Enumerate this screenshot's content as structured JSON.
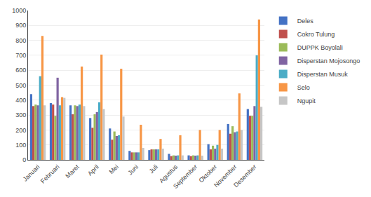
{
  "chart_data": {
    "type": "bar",
    "categories": [
      "Januari",
      "Februari",
      "Maret",
      "April",
      "Mei",
      "Juni",
      "Juli",
      "Agustus",
      "September",
      "Oktober",
      "November",
      "Desember"
    ],
    "series": [
      {
        "name": "Deles",
        "color": "#4472C4",
        "values": [
          440,
          380,
          365,
          280,
          210,
          60,
          65,
          40,
          30,
          105,
          240,
          340
        ]
      },
      {
        "name": "Cokro Tulung",
        "color": "#C0504D",
        "values": [
          360,
          370,
          305,
          215,
          135,
          50,
          70,
          25,
          25,
          70,
          175,
          295
        ]
      },
      {
        "name": "DUPPK Boyolali",
        "color": "#9BBB59",
        "values": [
          370,
          295,
          365,
          305,
          190,
          50,
          70,
          30,
          30,
          95,
          225,
          295
        ]
      },
      {
        "name": "Disperstan Mojosongo",
        "color": "#8064A2",
        "values": [
          365,
          550,
          360,
          320,
          160,
          50,
          70,
          28,
          28,
          75,
          185,
          360
        ]
      },
      {
        "name": "Disperstan Musuk",
        "color": "#4BACC6",
        "values": [
          560,
          365,
          370,
          385,
          165,
          50,
          70,
          30,
          30,
          100,
          190,
          700
        ]
      },
      {
        "name": "Selo",
        "color": "#F79646",
        "values": [
          830,
          420,
          625,
          705,
          610,
          235,
          140,
          165,
          200,
          200,
          445,
          940
        ]
      },
      {
        "name": "Ngupit",
        "color": "#C6C6C6",
        "values": [
          365,
          415,
          360,
          340,
          290,
          80,
          75,
          30,
          28,
          75,
          200,
          355
        ]
      }
    ],
    "ylim": [
      0,
      1000
    ],
    "yticks": [
      0,
      100,
      200,
      300,
      400,
      500,
      600,
      700,
      800,
      900,
      1000
    ],
    "grid": true,
    "legend": "upper right"
  }
}
